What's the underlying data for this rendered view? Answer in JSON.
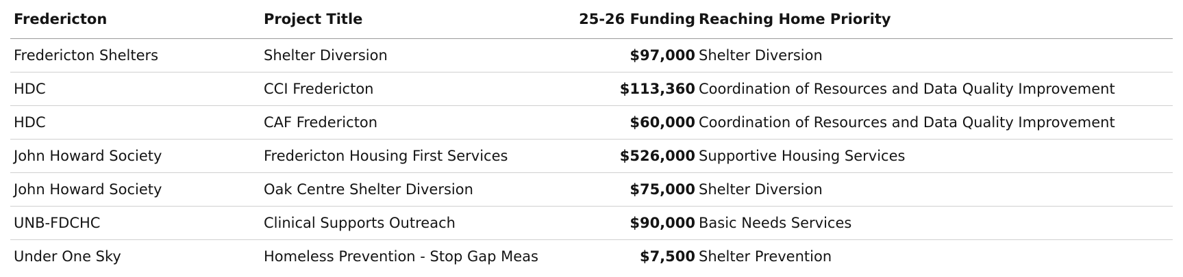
{
  "table": {
    "header": [
      "Fredericton",
      "Project Title",
      "25-26 Funding",
      "Reaching Home Priority"
    ],
    "rows": [
      [
        "Fredericton Shelters",
        "Shelter Diversion",
        "$97,000",
        "Shelter Diversion"
      ],
      [
        "HDC",
        "CCI Fredericton",
        "$113,360",
        "Coordination of Resources and Data Quality Improvement"
      ],
      [
        "HDC",
        "CAF Fredericton",
        "$60,000",
        "Coordination of Resources and Data Quality Improvement"
      ],
      [
        "John Howard Society",
        "Fredericton Housing First Services",
        "$526,000",
        "Supportive Housing Services"
      ],
      [
        "John Howard Society",
        "Oak Centre Shelter Diversion",
        "$75,000",
        "Shelter Diversion"
      ],
      [
        "UNB-FDCHC",
        "Clinical Supports Outreach",
        "$90,000",
        "Basic Needs Services"
      ],
      [
        "Under One Sky",
        "Homeless Prevention - Stop Gap Meas",
        "$7,500",
        "Shelter Prevention"
      ]
    ]
  }
}
